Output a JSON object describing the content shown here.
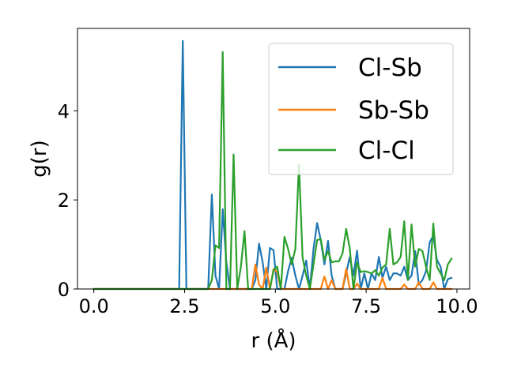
{
  "chart_data": {
    "type": "line",
    "xlabel": "r (Å)",
    "ylabel": "g(r)",
    "xlim": [
      -0.45,
      10.35
    ],
    "ylim": [
      0,
      5.85
    ],
    "x_ticks": [
      0.0,
      2.5,
      5.0,
      7.5,
      10.0
    ],
    "x_tick_labels": [
      "0.0",
      "2.5",
      "5.0",
      "7.5",
      "10.0"
    ],
    "y_ticks": [
      0,
      2,
      4
    ],
    "y_tick_labels": [
      "0",
      "2",
      "4"
    ],
    "grid": false,
    "legend_position": "top-right",
    "series": [
      {
        "name": "Cl-Sb",
        "color": "#1f77b4",
        "points": [
          [
            0.0,
            0
          ],
          [
            2.25,
            0
          ],
          [
            2.35,
            0
          ],
          [
            2.45,
            5.57
          ],
          [
            2.55,
            0
          ],
          [
            3.15,
            0
          ],
          [
            3.25,
            2.12
          ],
          [
            3.35,
            0.3
          ],
          [
            3.45,
            0
          ],
          [
            3.55,
            1.79
          ],
          [
            3.65,
            0.6
          ],
          [
            3.75,
            0
          ],
          [
            4.35,
            0
          ],
          [
            4.45,
            0.2
          ],
          [
            4.55,
            1.02
          ],
          [
            4.65,
            0.6
          ],
          [
            4.75,
            0
          ],
          [
            4.85,
            0.92
          ],
          [
            4.95,
            0.87
          ],
          [
            5.05,
            0
          ],
          [
            5.25,
            0
          ],
          [
            5.35,
            0.4
          ],
          [
            5.45,
            0.7
          ],
          [
            5.55,
            0.3
          ],
          [
            5.65,
            0
          ],
          [
            5.75,
            0.3
          ],
          [
            5.85,
            0.64
          ],
          [
            5.95,
            0
          ],
          [
            6.05,
            0.9
          ],
          [
            6.15,
            1.48
          ],
          [
            6.25,
            1.1
          ],
          [
            6.35,
            0.55
          ],
          [
            6.45,
            1.08
          ],
          [
            6.55,
            0.3
          ],
          [
            6.65,
            0
          ],
          [
            6.85,
            0
          ],
          [
            6.95,
            0.35
          ],
          [
            7.05,
            0.72
          ],
          [
            7.15,
            0.3
          ],
          [
            7.25,
            0.86
          ],
          [
            7.35,
            0
          ],
          [
            7.45,
            0.35
          ],
          [
            7.55,
            0
          ],
          [
            7.65,
            0.35
          ],
          [
            7.75,
            0.2
          ],
          [
            7.85,
            0.72
          ],
          [
            7.95,
            0.25
          ],
          [
            8.05,
            0.5
          ],
          [
            8.15,
            0.2
          ],
          [
            8.25,
            0.35
          ],
          [
            8.35,
            0.35
          ],
          [
            8.45,
            0.3
          ],
          [
            8.55,
            0.5
          ],
          [
            8.65,
            0.2
          ],
          [
            8.75,
            0.3
          ],
          [
            8.85,
            0.85
          ],
          [
            8.95,
            0.1
          ],
          [
            9.05,
            0.2
          ],
          [
            9.15,
            0.4
          ],
          [
            9.25,
            1.05
          ],
          [
            9.35,
            1.2
          ],
          [
            9.45,
            0.65
          ],
          [
            9.55,
            0.5
          ],
          [
            9.65,
            0.0
          ],
          [
            9.75,
            0.22
          ],
          [
            9.85,
            0.25
          ]
        ]
      },
      {
        "name": "Sb-Sb",
        "color": "#ff7f0e",
        "points": [
          [
            0.0,
            0
          ],
          [
            4.35,
            0
          ],
          [
            4.45,
            0.55
          ],
          [
            4.55,
            0.1
          ],
          [
            4.65,
            0
          ],
          [
            4.75,
            0.48
          ],
          [
            4.85,
            0
          ],
          [
            4.95,
            0.45
          ],
          [
            5.05,
            0.38
          ],
          [
            5.15,
            0
          ],
          [
            6.25,
            0
          ],
          [
            6.35,
            0.28
          ],
          [
            6.45,
            0
          ],
          [
            6.55,
            0.2
          ],
          [
            6.65,
            0
          ],
          [
            6.85,
            0
          ],
          [
            6.95,
            0.45
          ],
          [
            7.05,
            0
          ],
          [
            7.15,
            0
          ],
          [
            7.25,
            0.12
          ],
          [
            7.35,
            0
          ],
          [
            7.85,
            0
          ],
          [
            7.95,
            0.25
          ],
          [
            8.05,
            0
          ],
          [
            8.45,
            0
          ],
          [
            8.55,
            0.1
          ],
          [
            8.65,
            0
          ],
          [
            8.85,
            0
          ],
          [
            8.95,
            0.15
          ],
          [
            9.05,
            0
          ],
          [
            9.25,
            0
          ],
          [
            9.35,
            0.15
          ],
          [
            9.45,
            0
          ],
          [
            9.85,
            0
          ]
        ]
      },
      {
        "name": "Cl-Cl",
        "color": "#2ca02c",
        "points": [
          [
            0.0,
            0
          ],
          [
            3.05,
            0
          ],
          [
            3.15,
            0
          ],
          [
            3.25,
            0.2
          ],
          [
            3.35,
            0.98
          ],
          [
            3.45,
            0.92
          ],
          [
            3.55,
            5.32
          ],
          [
            3.65,
            0
          ],
          [
            3.75,
            0
          ],
          [
            3.85,
            3.02
          ],
          [
            3.95,
            0
          ],
          [
            4.05,
            0.5
          ],
          [
            4.15,
            1.3
          ],
          [
            4.25,
            0
          ],
          [
            4.85,
            0
          ],
          [
            4.95,
            0.42
          ],
          [
            5.05,
            0.5
          ],
          [
            5.15,
            0
          ],
          [
            5.25,
            1.17
          ],
          [
            5.35,
            0.9
          ],
          [
            5.45,
            0.55
          ],
          [
            5.55,
            0.9
          ],
          [
            5.65,
            2.8
          ],
          [
            5.75,
            0.7
          ],
          [
            5.85,
            0.3
          ],
          [
            5.95,
            0
          ],
          [
            6.05,
            0.55
          ],
          [
            6.15,
            1.1
          ],
          [
            6.25,
            1.12
          ],
          [
            6.35,
            0.65
          ],
          [
            6.45,
            0.85
          ],
          [
            6.55,
            0.6
          ],
          [
            6.65,
            0.62
          ],
          [
            6.75,
            0.62
          ],
          [
            6.85,
            0.8
          ],
          [
            6.95,
            1.35
          ],
          [
            7.05,
            0.9
          ],
          [
            7.15,
            0
          ],
          [
            7.25,
            0.6
          ],
          [
            7.35,
            0.38
          ],
          [
            7.45,
            0.4
          ],
          [
            7.55,
            0.38
          ],
          [
            7.65,
            0.35
          ],
          [
            7.75,
            0.42
          ],
          [
            7.85,
            0.3
          ],
          [
            7.95,
            0.48
          ],
          [
            8.05,
            0.55
          ],
          [
            8.15,
            1.35
          ],
          [
            8.25,
            0.55
          ],
          [
            8.35,
            0.6
          ],
          [
            8.45,
            0.72
          ],
          [
            8.55,
            1.52
          ],
          [
            8.65,
            0.2
          ],
          [
            8.75,
            1.45
          ],
          [
            8.85,
            0.5
          ],
          [
            8.95,
            0.9
          ],
          [
            9.05,
            0.85
          ],
          [
            9.15,
            0.5
          ],
          [
            9.25,
            0.2
          ],
          [
            9.35,
            1.47
          ],
          [
            9.45,
            0.5
          ],
          [
            9.55,
            0.35
          ],
          [
            9.65,
            0.2
          ],
          [
            9.75,
            0.55
          ],
          [
            9.85,
            0.68
          ]
        ]
      }
    ]
  }
}
